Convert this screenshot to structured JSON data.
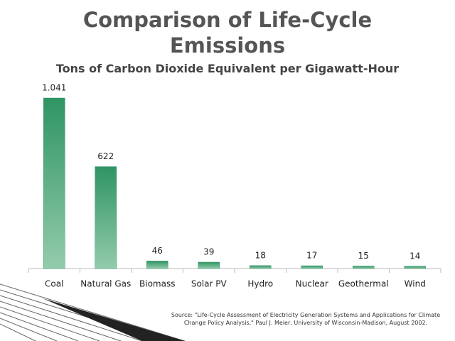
{
  "chart_data": {
    "type": "bar",
    "title": "Comparison of Life-Cycle Emissions",
    "subtitle": "Tons of Carbon Dioxide Equivalent per Gigawatt-Hour",
    "categories": [
      "Coal",
      "Natural Gas",
      "Biomass",
      "Solar PV",
      "Hydro",
      "Nuclear",
      "Geothermal",
      "Wind"
    ],
    "values": [
      1041,
      622,
      46,
      39,
      18,
      17,
      15,
      14
    ],
    "value_labels": [
      "1.041",
      "622",
      "46",
      "39",
      "18",
      "17",
      "15",
      "14"
    ],
    "color": "#2f9463",
    "source": "Source: \"Life-Cycle Assessment of Electricity Generation Systems and Applications for Climate Change Policy Analysis,\" Paul J. Meier, University of Wisconsin-Madison, August 2002."
  }
}
